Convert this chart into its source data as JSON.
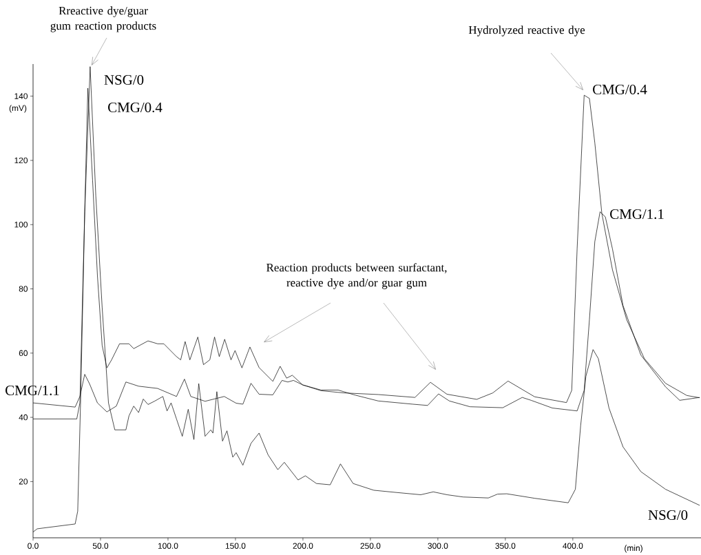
{
  "chart_data": {
    "type": "line",
    "xlabel": "(min)",
    "ylabel": "(mV)",
    "xlim": [
      0,
      495
    ],
    "ylim": [
      2.5,
      150
    ],
    "xticks": [
      {
        "value": 0,
        "label": "0.0"
      },
      {
        "value": 50,
        "label": "50.0"
      },
      {
        "value": 100,
        "label": "100.0"
      },
      {
        "value": 150,
        "label": "150.0"
      },
      {
        "value": 200,
        "label": "200.0"
      },
      {
        "value": 250,
        "label": "250.0"
      },
      {
        "value": 300,
        "label": "300.0"
      },
      {
        "value": 350,
        "label": "350.0"
      },
      {
        "value": 400,
        "label": "400.0"
      }
    ],
    "yticks": [
      20,
      40,
      60,
      80,
      100,
      120,
      140
    ],
    "annotations": [
      "Rreactive dye/guar gum reaction products",
      "Reaction products between surfactant, reactive dye and/or guar gum",
      "Hydrolyzed reactive dye"
    ],
    "series": [
      {
        "name": "NSG/0",
        "color": "#000000",
        "x": [
          0,
          3.1,
          31.2,
          33.1,
          35.2,
          38.3,
          42.3,
          46.5,
          51.2,
          55.9,
          60.6,
          68.8,
          71.1,
          74.6,
          78.2,
          81.7,
          85.2,
          89.9,
          96.2,
          99.3,
          102.3,
          106.3,
          110.6,
          115,
          119.2,
          122.8,
          127.5,
          131.7,
          133.3,
          136.2,
          140.4,
          143.7,
          148,
          150.5,
          155.5,
          161.5,
          167.5,
          174.2,
          181.4,
          186.2,
          196.4,
          201.8,
          210,
          220.2,
          227.8,
          237.2,
          252.5,
          269.4,
          287.3,
          296.6,
          306.8,
          318.7,
          337.4,
          344.2,
          351,
          371.7,
          396.6,
          401.9,
          405.8,
          409.7,
          415,
          418.9,
          426.8,
          437.2,
          450.4,
          468.7,
          494
        ],
        "values": [
          4.3,
          5.3,
          6.8,
          10.8,
          44.5,
          104,
          149.2,
          109,
          74.3,
          44.5,
          36.1,
          36.1,
          40.5,
          43.5,
          41.5,
          45.7,
          44,
          45,
          46.5,
          42,
          44.5,
          39.5,
          34.1,
          42.5,
          33.1,
          50.5,
          34.1,
          36.1,
          35.1,
          48,
          32.6,
          35.8,
          27.6,
          29,
          25.1,
          31.9,
          35.1,
          28.3,
          23.7,
          26,
          20.5,
          21.8,
          19.4,
          19,
          25.5,
          19.4,
          17.3,
          16.6,
          15.9,
          16.8,
          15.9,
          15.2,
          14.9,
          16.1,
          16.2,
          14.8,
          13.4,
          17.6,
          37.4,
          52.8,
          61.1,
          58.3,
          42.9,
          30.8,
          23.1,
          17.6,
          12.6
        ]
      },
      {
        "name": "CMG/0.4",
        "color": "#000000",
        "x": [
          0,
          32.4,
          34.7,
          37.1,
          40.6,
          44.1,
          47.7,
          51.2,
          54.7,
          58.2,
          64.1,
          71.1,
          74.6,
          85.2,
          92.3,
          96.9,
          106.3,
          109.4,
          112.7,
          116.2,
          122.1,
          126.3,
          131,
          134.5,
          138,
          142,
          146.7,
          149.7,
          154.8,
          160.7,
          167.5,
          177.7,
          183.1,
          187.9,
          192.1,
          199.8,
          213.4,
          230.4,
          255.8,
          283,
          294.5,
          306.7,
          328.8,
          340.7,
          352,
          371.7,
          395.3,
          399.2,
          403.2,
          408.4,
          412.3,
          416.3,
          421.5,
          429.4,
          439.9,
          453,
          468.7,
          484.5,
          494
        ],
        "values": [
          39.5,
          39.5,
          44.5,
          84.2,
          142.5,
          113.9,
          84.2,
          62.4,
          55.4,
          57.9,
          62.9,
          62.9,
          61.4,
          63.8,
          62.9,
          62.9,
          58.9,
          57.9,
          63.6,
          57.9,
          65,
          56.4,
          57.9,
          65,
          58.9,
          64.3,
          57.9,
          60.8,
          55.4,
          61.9,
          55.5,
          51.2,
          55.9,
          52.2,
          53.1,
          50.1,
          48.3,
          47.6,
          47.1,
          46.2,
          50.9,
          47.2,
          45.6,
          47.6,
          51.3,
          46.4,
          44.6,
          48.4,
          92.5,
          140.3,
          139.3,
          125.5,
          103.5,
          85.9,
          70.4,
          58.3,
          50.6,
          46.8,
          46.1
        ]
      },
      {
        "name": "CMG/1.1",
        "color": "#000000",
        "x": [
          0,
          31.2,
          34.7,
          38.3,
          41.8,
          47.7,
          54.7,
          61.7,
          68.8,
          78.2,
          92.3,
          106.3,
          112.2,
          116.9,
          127.5,
          141.7,
          150.5,
          155.5,
          161.5,
          167.5,
          177.7,
          184.5,
          188.8,
          193,
          199.8,
          213.4,
          226.1,
          238.9,
          255.8,
          281.3,
          292.4,
          300.5,
          308.5,
          323.8,
          348.1,
          362.5,
          369.1,
          384.8,
          403.2,
          408.4,
          412.3,
          416.3,
          420.2,
          424.1,
          429.4,
          437.2,
          450.4,
          468.7,
          479.2,
          494
        ],
        "values": [
          44.5,
          43.2,
          46.5,
          53.4,
          50.5,
          44.5,
          41.7,
          43.5,
          51,
          49.7,
          49,
          46.5,
          51.9,
          46.5,
          45,
          46.5,
          44.4,
          44.1,
          50.6,
          47.2,
          47,
          51.5,
          51,
          51.5,
          50.1,
          48.5,
          48.5,
          46.9,
          45.1,
          44.1,
          43.7,
          47.3,
          45.1,
          43.3,
          43,
          46.2,
          45.3,
          42.9,
          42,
          48.4,
          70.4,
          94.7,
          104,
          102.4,
          92.4,
          74.8,
          59.4,
          49.5,
          45.3,
          46.2
        ]
      }
    ]
  }
}
